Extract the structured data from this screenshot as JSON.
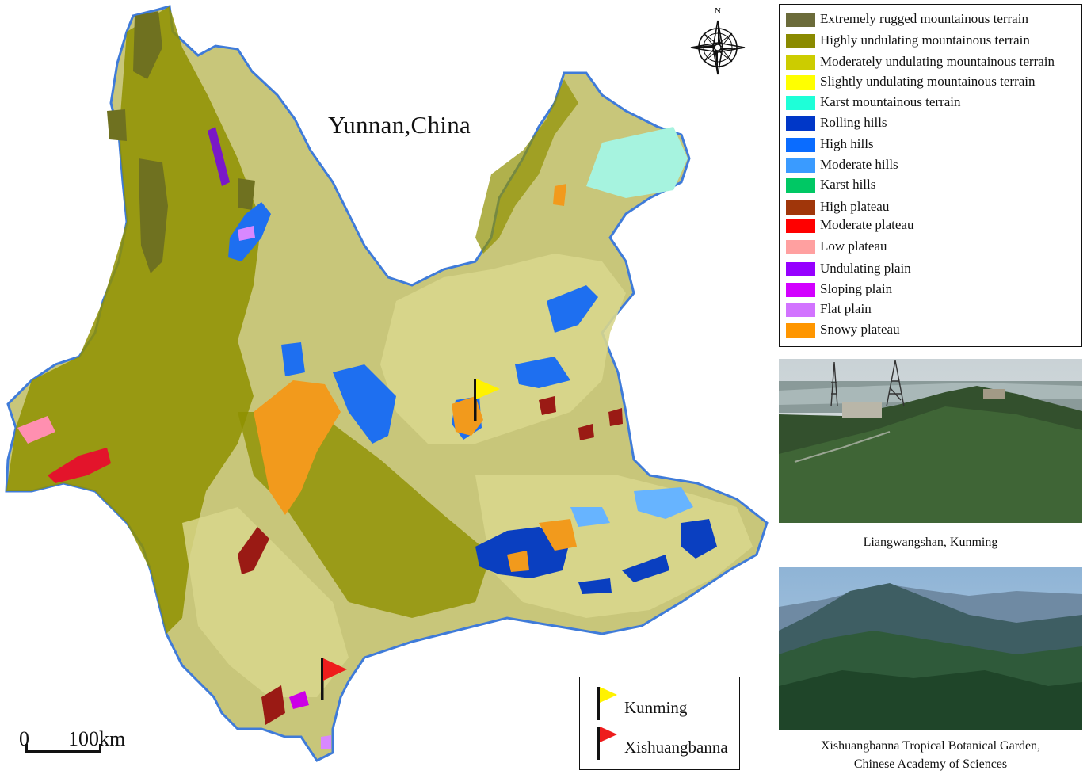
{
  "map": {
    "title": "Yunnan,China",
    "north_label": "N",
    "scale": {
      "zero": "0",
      "label": "100km"
    }
  },
  "sites_legend": [
    {
      "name": "Kunming",
      "flag_color": "#fff200"
    },
    {
      "name": "Xishuangbanna",
      "flag_color": "#ee1c1c"
    }
  ],
  "legend": [
    {
      "label": "Extremely rugged mountainous terrain",
      "color": "#6b6b3a"
    },
    {
      "label": "Highly undulating mountainous terrain",
      "color": "#8a8a00"
    },
    {
      "label": "Moderately undulating mountainous terrain",
      "color": "#cccc00"
    },
    {
      "label": "Slightly undulating mountainous terrain",
      "color": "#ffff00"
    },
    {
      "label": "Karst mountainous terrain",
      "color": "#1effd8"
    },
    {
      "label": "Rolling hills",
      "color": "#0037c8"
    },
    {
      "label": "High hills",
      "color": "#0a6cff"
    },
    {
      "label": "Moderate hills",
      "color": "#3a9bff"
    },
    {
      "label": "Karst hills",
      "color": "#00c864"
    },
    {
      "label": "High plateau",
      "color": "#a0360a"
    },
    {
      "label": "Moderate plateau",
      "color": "#ff0000"
    },
    {
      "label": "Low plateau",
      "color": "#ffa0a0"
    },
    {
      "label": "Undulating plain",
      "color": "#9600ff"
    },
    {
      "label": "Sloping plain",
      "color": "#d200ff"
    },
    {
      "label": "Flat plain",
      "color": "#d273ff"
    },
    {
      "label": "Snowy plateau",
      "color": "#ff9600"
    }
  ],
  "photos": [
    {
      "caption": "Liangwangshan, Kunming"
    },
    {
      "caption_line1": "Xishuangbanna Tropical Botanical Garden,",
      "caption_line2": "Chinese Academy of Sciences"
    }
  ]
}
